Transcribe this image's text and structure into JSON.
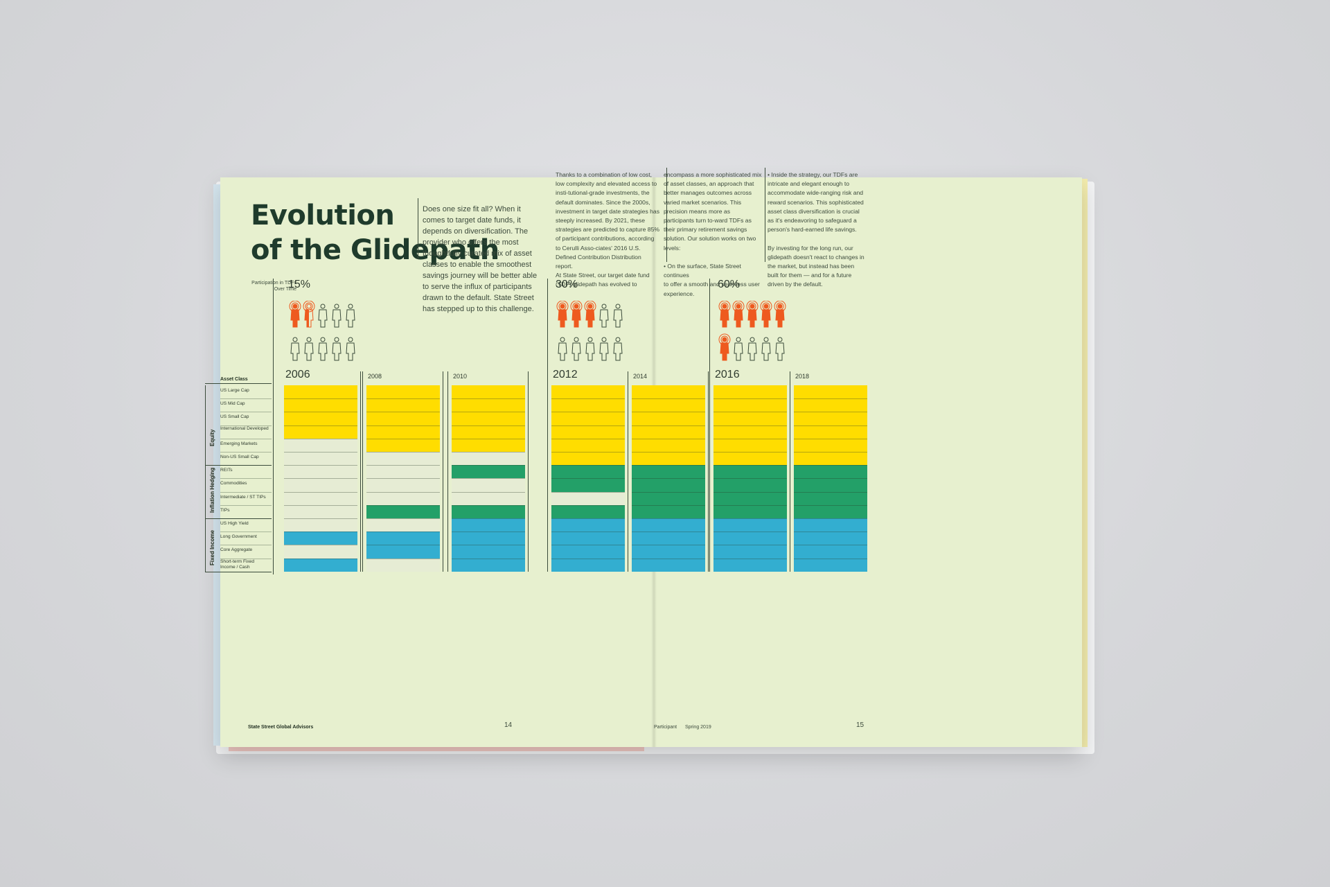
{
  "colors": {
    "paper": "#e7f0cf",
    "equity": "#ffdd00",
    "inflation_hedging": "#23a068",
    "fixed_income": "#33aed0",
    "empty": "#e6ecd4",
    "participant": "#ee5a1f",
    "non_participant": "#3a4a3a"
  },
  "left_page": {
    "title": "Evolution\nof the Glidepath",
    "intro": "Does one size fit all? When it comes to target date funds, it depends on diversification. The provider who offers the most thoughtfully curated mix of asset classes to enable the smoothest savings journey will be better able to serve the influx of participants drawn to the default. State Street has stepped up to this challenge.",
    "footer": "State Street Global Advisors",
    "page_number": "14"
  },
  "right_page": {
    "col1": "Thanks to a combination of low cost, low complexity and elevated access to insti-tutional-grade investments, the default dominates. Since the 2000s, investment in target date strategies has steeply increased. By 2021, these strategies are predicted to capture 85% of participant contributions, according to Cerulli Asso-ciates' 2016 U.S. Defined Contribution Distribution report.\n     At State Street, our target date fund (TDF) glidepath has evolved to",
    "col2": "encompass a more sophisticated mix of asset classes, an approach that better manages outcomes across varied market scenarios. This precision means more as participants turn to-ward TDFs as their primary retirement savings solution. Our solution works on two levels:\n\n•   On the surface, State Street continues\n    to offer a smooth and seamless user\n    experience.",
    "col3": "•   Inside the strategy, our TDFs are\n    intricate and elegant enough to\n    accommodate wide-ranging risk and\n    reward scenarios. This sophisticated\n    asset class diversification is crucial\n    as it's endeavoring to safeguard a\n    person's hard-earned life savings.\n\nBy investing for the long run, our glidepath doesn't react to changes in the market, but instead has been built for them — and for a future driven by the default.",
    "footer_left": "Participant",
    "footer_issue": "Spring 2019",
    "page_number": "15"
  },
  "chart_data": {
    "type": "table",
    "participation_label": "Participation in TDFs\nOver Time",
    "asset_class_header": "Asset Class",
    "groups": [
      {
        "name": "Equity",
        "rows": [
          "US Large Cap",
          "US Mid Cap",
          "US Small Cap",
          "International Developed",
          "Emerging Markets",
          "Non-US Small Cap"
        ]
      },
      {
        "name": "Inflation Hedging",
        "rows": [
          "REITs",
          "Commodities",
          "Intermediate / ST TIPs",
          "TIPs"
        ]
      },
      {
        "name": "Fixed Income",
        "rows": [
          "US High Yield",
          "Long Government",
          "Core Aggregate",
          "Short-term Fixed Income / Cash"
        ]
      }
    ],
    "participation": [
      {
        "year": "2006",
        "percent": "15%",
        "participants": 1.5,
        "of": 10
      },
      {
        "year": "2012",
        "percent": "30%",
        "participants": 3,
        "of": 10
      },
      {
        "year": "2016",
        "percent": "60%",
        "participants": 6,
        "of": 10
      }
    ],
    "years": [
      {
        "year": "2006",
        "emphasis": true,
        "held": [
          1,
          1,
          1,
          1,
          0,
          0,
          0,
          0,
          0,
          0,
          0,
          1,
          0,
          1
        ]
      },
      {
        "year": "2008",
        "emphasis": false,
        "held": [
          1,
          1,
          1,
          1,
          1,
          0,
          0,
          0,
          0,
          1,
          0,
          1,
          1,
          0
        ]
      },
      {
        "year": "2010",
        "emphasis": false,
        "held": [
          1,
          1,
          1,
          1,
          1,
          0,
          1,
          0,
          0,
          1,
          1,
          1,
          1,
          1
        ]
      },
      {
        "year": "2012",
        "emphasis": true,
        "held": [
          1,
          1,
          1,
          1,
          1,
          1,
          1,
          1,
          0,
          1,
          1,
          1,
          1,
          1
        ]
      },
      {
        "year": "2014",
        "emphasis": false,
        "held": [
          1,
          1,
          1,
          1,
          1,
          1,
          1,
          1,
          1,
          1,
          1,
          1,
          1,
          1
        ]
      },
      {
        "year": "2016",
        "emphasis": true,
        "held": [
          1,
          1,
          1,
          1,
          1,
          1,
          1,
          1,
          1,
          1,
          1,
          1,
          1,
          1
        ]
      },
      {
        "year": "2018",
        "emphasis": false,
        "held": [
          1,
          1,
          1,
          1,
          1,
          1,
          1,
          1,
          1,
          1,
          1,
          1,
          1,
          1
        ]
      }
    ]
  }
}
